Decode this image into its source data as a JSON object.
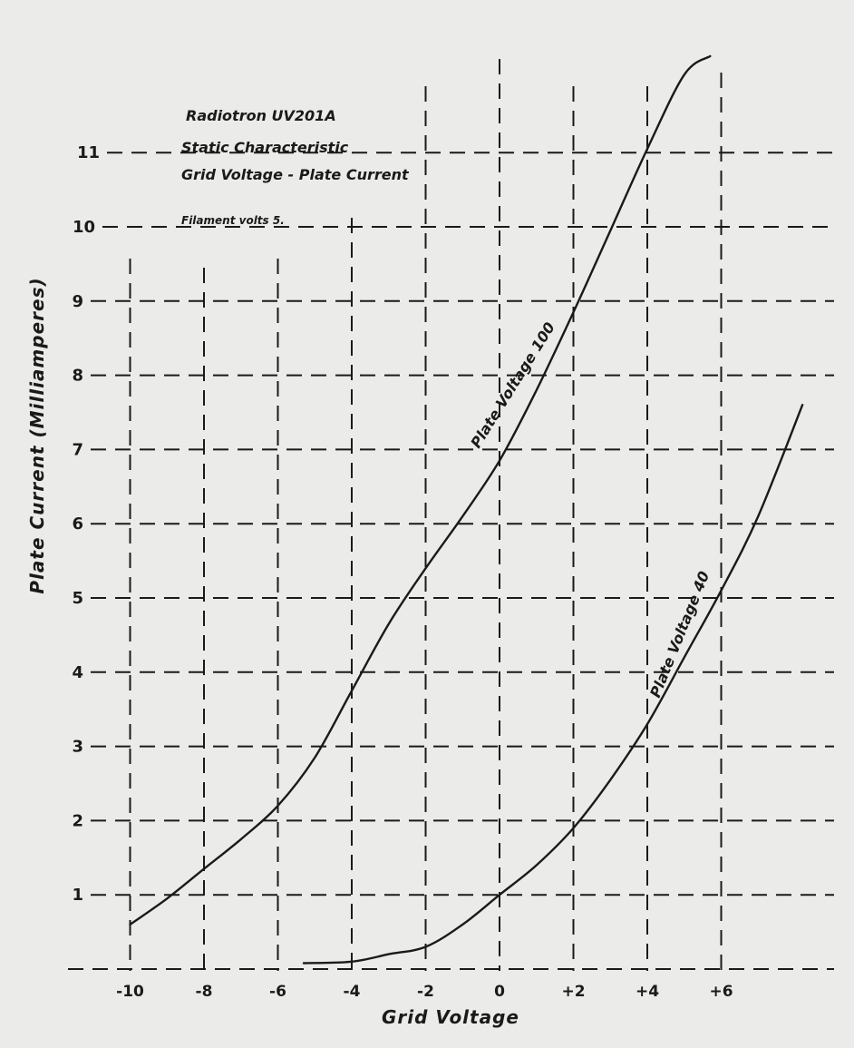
{
  "chart_data": {
    "type": "line",
    "title": "Radiotron UV201A",
    "subtitle_lines": [
      "Static Characteristic",
      "Grid Voltage - Plate Current"
    ],
    "annotation": "Filament volts 5.",
    "xlabel": "Grid Voltage",
    "ylabel": "Plate Current (Milliamperes)",
    "x_tick_values": [
      -10,
      -8,
      -6,
      -4,
      -2,
      0,
      2,
      4,
      6
    ],
    "x_tick_labels": [
      "-10",
      "-8",
      "-6",
      "-4",
      "-2",
      "0",
      "+2",
      "+4",
      "+6"
    ],
    "y_tick_values": [
      1,
      2,
      3,
      4,
      5,
      6,
      7,
      8,
      9,
      10,
      11
    ],
    "y_tick_labels": [
      "1",
      "2",
      "3",
      "4",
      "5",
      "6",
      "7",
      "8",
      "9",
      "10",
      "11"
    ],
    "xlim": [
      -11.7,
      9
    ],
    "ylim": [
      0,
      12
    ],
    "grid": true,
    "grid_style": "dashed",
    "legend": "none",
    "series": [
      {
        "name": "Plate Voltage 100",
        "x": [
          -10,
          -9,
          -8,
          -7,
          -6,
          -5,
          -4,
          -3,
          -2,
          -1,
          0,
          1,
          2,
          3,
          4,
          5,
          5.7
        ],
        "y": [
          0.6,
          0.95,
          1.35,
          1.75,
          2.2,
          2.85,
          3.75,
          4.65,
          5.4,
          6.1,
          6.85,
          7.8,
          8.85,
          9.95,
          11.05,
          12.05,
          12.3
        ]
      },
      {
        "name": "Plate Voltage 40",
        "x": [
          -5.3,
          -4,
          -3,
          -2,
          -1,
          0,
          1,
          2,
          3,
          4,
          5,
          6,
          7,
          8.2
        ],
        "y": [
          0.08,
          0.1,
          0.2,
          0.3,
          0.6,
          1.0,
          1.4,
          1.9,
          2.55,
          3.3,
          4.2,
          5.1,
          6.1,
          7.6
        ]
      }
    ],
    "colors": {
      "ink": "#1a1a1a",
      "paper": "#ebebea"
    }
  }
}
